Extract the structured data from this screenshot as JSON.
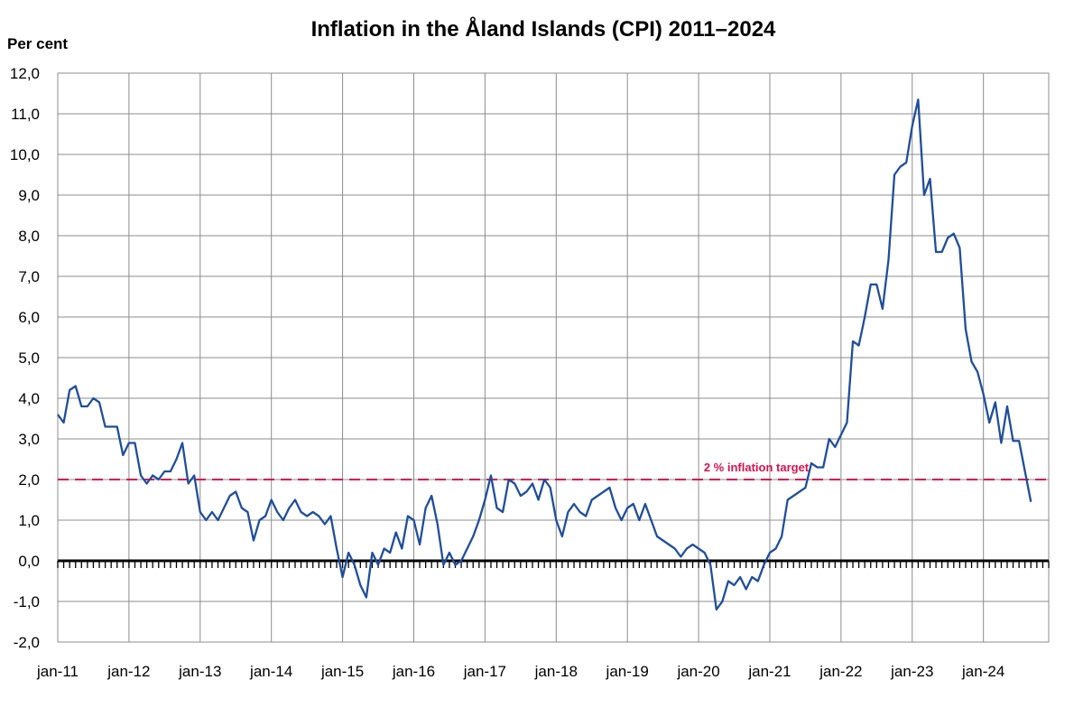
{
  "chart_data": {
    "type": "line",
    "title": "Inflation in the Åland Islands (CPI) 2011–2024",
    "ylabel": "Per cent",
    "xlabel": "",
    "ylim": [
      -2,
      12
    ],
    "yticks": [
      "-2,0",
      "-1,0",
      "0,0",
      "1,0",
      "2,0",
      "3,0",
      "4,0",
      "5,0",
      "6,0",
      "7,0",
      "8,0",
      "9,0",
      "10,0",
      "11,0",
      "12,0"
    ],
    "x_tick_labels": [
      "jan-11",
      "jan-12",
      "jan-13",
      "jan-14",
      "jan-15",
      "jan-16",
      "jan-17",
      "jan-18",
      "jan-19",
      "jan-20",
      "jan-21",
      "jan-22",
      "jan-23",
      "jan-24"
    ],
    "grid": true,
    "start": "jan-11",
    "series": [
      {
        "color": "#1f4e9c",
        "values": [
          3.6,
          3.4,
          4.2,
          4.3,
          3.8,
          3.8,
          4.0,
          3.9,
          3.3,
          3.3,
          3.3,
          2.6,
          2.9,
          2.9,
          2.1,
          1.9,
          2.1,
          2.0,
          2.2,
          2.2,
          2.5,
          2.9,
          1.9,
          2.1,
          1.2,
          1.0,
          1.2,
          1.0,
          1.3,
          1.6,
          1.7,
          1.3,
          1.2,
          0.5,
          1.0,
          1.1,
          1.5,
          1.2,
          1.0,
          1.3,
          1.5,
          1.2,
          1.1,
          1.2,
          1.1,
          0.9,
          1.1,
          0.3,
          -0.4,
          0.2,
          -0.1,
          -0.6,
          -0.9,
          0.2,
          -0.1,
          0.3,
          0.2,
          0.7,
          0.3,
          1.1,
          1.0,
          0.4,
          1.3,
          1.6,
          0.9,
          -0.1,
          0.2,
          -0.1,
          0.0,
          0.3,
          0.6,
          1.0,
          1.5,
          2.1,
          1.3,
          1.2,
          2.0,
          1.9,
          1.6,
          1.7,
          1.9,
          1.5,
          2.0,
          1.8,
          1.0,
          0.6,
          1.2,
          1.4,
          1.2,
          1.1,
          1.5,
          1.6,
          1.7,
          1.8,
          1.3,
          1.0,
          1.3,
          1.4,
          1.0,
          1.4,
          1.0,
          0.6,
          0.5,
          0.4,
          0.3,
          0.1,
          0.3,
          0.4,
          0.3,
          0.2,
          -0.1,
          -1.2,
          -1.0,
          -0.5,
          -0.6,
          -0.4,
          -0.7,
          -0.4,
          -0.5,
          -0.1,
          0.2,
          0.3,
          0.6,
          1.5,
          1.6,
          1.7,
          1.8,
          2.4,
          2.3,
          2.3,
          3.0,
          2.8,
          3.1,
          3.4,
          5.4,
          5.3,
          6.0,
          6.8,
          6.8,
          6.2,
          7.4,
          9.5,
          9.7,
          9.8,
          10.7,
          11.35,
          9.0,
          9.4,
          7.6,
          7.6,
          7.95,
          8.05,
          7.7,
          5.7,
          4.9,
          4.65,
          4.1,
          3.4,
          3.9,
          2.9,
          3.8,
          2.95,
          2.95,
          2.2,
          1.45
        ]
      }
    ],
    "target_line": {
      "value": 2.0,
      "label": "2 % inflation target",
      "color": "#d6124f"
    }
  }
}
